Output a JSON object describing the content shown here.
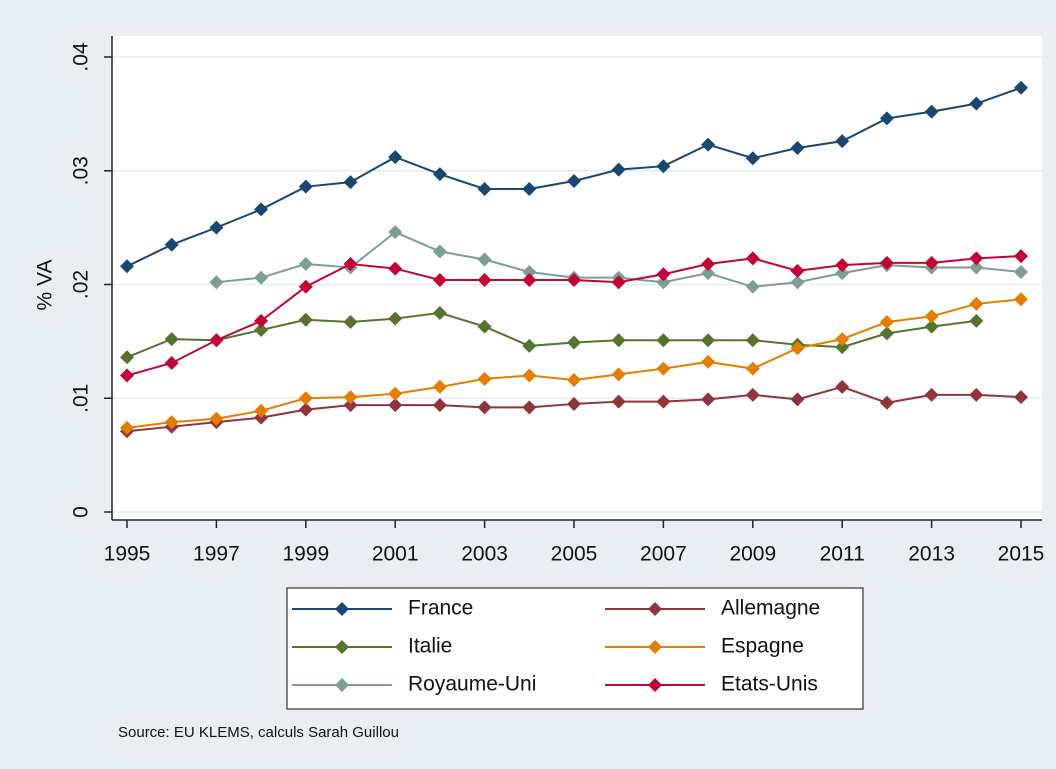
{
  "chart_data": {
    "type": "line",
    "y_label": "% VA",
    "source": "Source: EU KLEMS, calculs Sarah Guillou",
    "x": [
      1995,
      1996,
      1997,
      1998,
      1999,
      2000,
      2001,
      2002,
      2003,
      2004,
      2005,
      2006,
      2007,
      2008,
      2009,
      2010,
      2011,
      2012,
      2013,
      2014,
      2015
    ],
    "xlim": [
      1995,
      2015
    ],
    "xticks": [
      1995,
      1997,
      1999,
      2001,
      2003,
      2005,
      2007,
      2009,
      2011,
      2013,
      2015
    ],
    "ylim": [
      0,
      0.04
    ],
    "yticks": [
      0,
      {
        "value": 0.01,
        "label": ".01"
      },
      {
        "value": 0.02,
        "label": ".02"
      },
      {
        "value": 0.03,
        "label": ".03"
      },
      {
        "value": 0.04,
        "label": ".04"
      }
    ],
    "grid": true,
    "legend_position": "bottom",
    "series": [
      {
        "name": "France",
        "color": "#1a476f",
        "values": [
          0.0216,
          0.0235,
          0.025,
          0.0266,
          0.0286,
          0.029,
          0.0312,
          0.0297,
          0.0284,
          0.0284,
          0.0291,
          0.0301,
          0.0304,
          0.0323,
          0.0311,
          0.032,
          0.0326,
          0.0346,
          0.0352,
          0.0359,
          0.0373
        ]
      },
      {
        "name": "Allemagne",
        "color": "#90353b",
        "values": [
          0.0071,
          0.0075,
          0.0079,
          0.0083,
          0.009,
          0.0094,
          0.0094,
          0.0094,
          0.0092,
          0.0092,
          0.0095,
          0.0097,
          0.0097,
          0.0099,
          0.0103,
          0.0099,
          0.011,
          0.0096,
          0.0103,
          0.0103,
          0.0101
        ]
      },
      {
        "name": "Italie",
        "color": "#55752f",
        "values": [
          0.0136,
          0.0152,
          0.0151,
          0.016,
          0.0169,
          0.0167,
          0.017,
          0.0175,
          0.0163,
          0.0146,
          0.0149,
          0.0151,
          0.0151,
          0.0151,
          0.0151,
          0.0147,
          0.0145,
          0.0157,
          0.0163,
          0.0168,
          null
        ]
      },
      {
        "name": "Espagne",
        "color": "#e37e00",
        "values": [
          0.0074,
          0.0079,
          0.0082,
          0.0089,
          0.01,
          0.0101,
          0.0104,
          0.011,
          0.0117,
          0.012,
          0.0116,
          0.0121,
          0.0126,
          0.0132,
          0.0126,
          0.0144,
          0.0152,
          0.0167,
          0.0172,
          0.0183,
          0.0187
        ]
      },
      {
        "name": "Royaume-Uni",
        "color": "#7e9e94",
        "values": [
          null,
          null,
          0.0202,
          0.0206,
          0.0218,
          0.0215,
          0.0246,
          0.0229,
          0.0222,
          0.0211,
          0.0206,
          0.0206,
          0.0202,
          0.021,
          0.0198,
          0.0202,
          0.021,
          0.0217,
          0.0215,
          0.0215,
          0.0211
        ]
      },
      {
        "name": "Etats-Unis",
        "color": "#c10534",
        "values": [
          0.012,
          0.0131,
          0.0151,
          0.0168,
          0.0198,
          0.0218,
          0.0214,
          0.0204,
          0.0204,
          0.0204,
          0.0204,
          0.0202,
          0.0209,
          0.0218,
          0.0223,
          0.0212,
          0.0217,
          0.0219,
          0.0219,
          0.0223,
          0.0225
        ]
      }
    ]
  }
}
